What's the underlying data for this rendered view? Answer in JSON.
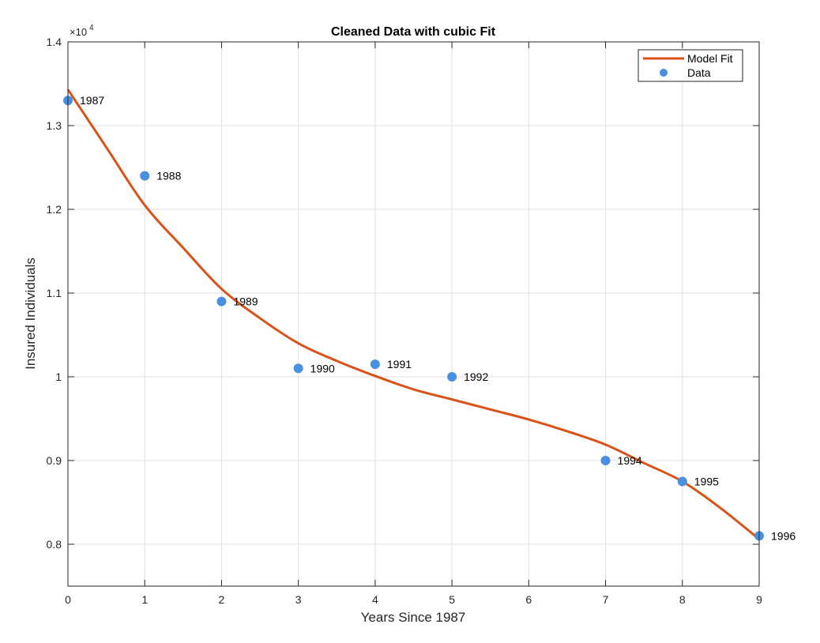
{
  "chart_data": {
    "type": "scatter",
    "title": "Cleaned Data with cubic Fit",
    "xlabel": "Years Since 1987",
    "ylabel": "Insured Individuals",
    "xlim": [
      0,
      9
    ],
    "ylim": [
      7500,
      14000
    ],
    "x_ticks": [
      "0",
      "1",
      "2",
      "3",
      "4",
      "5",
      "6",
      "7",
      "8",
      "9"
    ],
    "y_ticks": [
      "0.8",
      "0.9",
      "1",
      "1.1",
      "1.2",
      "1.3",
      "1.4"
    ],
    "y_exponent_base": "×10",
    "y_exponent_power": "4",
    "grid": true,
    "legend_position": "top-right",
    "series": [
      {
        "name": "Model Fit",
        "kind": "line",
        "color": "#d95319",
        "x": [
          0,
          0.5,
          1,
          1.5,
          2,
          2.5,
          3,
          3.5,
          4,
          4.5,
          5,
          5.5,
          6,
          6.5,
          7,
          7.5,
          8,
          8.5,
          9
        ],
        "y": [
          13430,
          12740,
          12050,
          11540,
          11050,
          10700,
          10400,
          10190,
          10010,
          9850,
          9730,
          9610,
          9490,
          9350,
          9190,
          8970,
          8750,
          8430,
          8060
        ]
      },
      {
        "name": "Data",
        "kind": "scatter",
        "color": "#4a90e2",
        "x": [
          0,
          1,
          2,
          3,
          4,
          5,
          7,
          8,
          9
        ],
        "y": [
          13300,
          12400,
          10900,
          10100,
          10150,
          10000,
          9000,
          8750,
          8100
        ],
        "labels": [
          "1987",
          "1988",
          "1989",
          "1990",
          "1991",
          "1992",
          "1994",
          "1995",
          "1996"
        ]
      }
    ]
  }
}
